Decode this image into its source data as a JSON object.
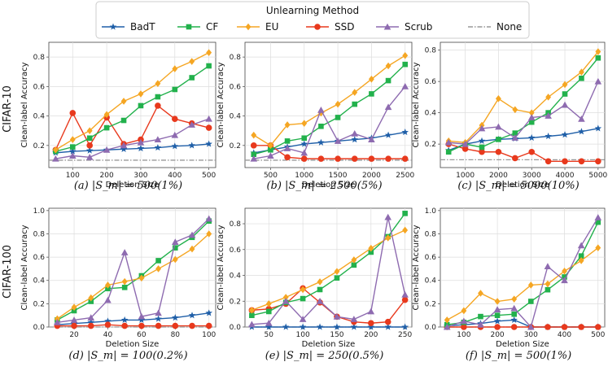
{
  "legend": {
    "title": "Unlearning Method",
    "entries": [
      {
        "name": "BadT",
        "color": "#1f5fa8",
        "marker": "star"
      },
      {
        "name": "CF",
        "color": "#22b14c",
        "marker": "square"
      },
      {
        "name": "EU",
        "color": "#f5a623",
        "marker": "diamond"
      },
      {
        "name": "SSD",
        "color": "#e8391d",
        "marker": "circle"
      },
      {
        "name": "Scrub",
        "color": "#8e6bb0",
        "marker": "triangle"
      },
      {
        "name": "None",
        "color": "#999999",
        "marker": "dashdot"
      }
    ]
  },
  "row_labels": [
    "CIFAR-10",
    "CIFAR-100"
  ],
  "chart_data": [
    {
      "type": "line",
      "caption": "(a) |S_m| = 500(1%)",
      "xlabel": "Deletion Size",
      "ylabel": "Clean-label Accuracy",
      "xlim": [
        30,
        520
      ],
      "ylim": [
        0.05,
        0.9
      ],
      "xticks": [
        100,
        200,
        300,
        400,
        500
      ],
      "yticks": [
        0.2,
        0.4,
        0.6,
        0.8
      ],
      "x": [
        50,
        100,
        150,
        200,
        250,
        300,
        350,
        400,
        450,
        500
      ],
      "none": 0.1,
      "series": [
        {
          "name": "BadT",
          "values": [
            0.15,
            0.16,
            0.165,
            0.17,
            0.175,
            0.18,
            0.185,
            0.195,
            0.2,
            0.21
          ]
        },
        {
          "name": "CF",
          "values": [
            0.16,
            0.19,
            0.25,
            0.32,
            0.37,
            0.47,
            0.53,
            0.58,
            0.66,
            0.74
          ]
        },
        {
          "name": "EU",
          "values": [
            0.17,
            0.24,
            0.3,
            0.41,
            0.5,
            0.55,
            0.62,
            0.72,
            0.77,
            0.83
          ]
        },
        {
          "name": "SSD",
          "values": [
            0.17,
            0.42,
            0.2,
            0.39,
            0.21,
            0.24,
            0.47,
            0.38,
            0.35,
            0.32
          ]
        },
        {
          "name": "Scrub",
          "values": [
            0.11,
            0.13,
            0.12,
            0.17,
            0.2,
            0.22,
            0.24,
            0.27,
            0.34,
            0.38
          ]
        }
      ]
    },
    {
      "type": "line",
      "caption": "(b) |S_m| = 2500(5%)",
      "xlabel": "Deletion Size",
      "ylabel": "Clean-label Accuracy",
      "xlim": [
        120,
        2600
      ],
      "ylim": [
        0.05,
        0.9
      ],
      "xticks": [
        500,
        1000,
        1500,
        2000,
        2500
      ],
      "yticks": [
        0.2,
        0.4,
        0.6,
        0.8
      ],
      "x": [
        250,
        500,
        750,
        1000,
        1250,
        1500,
        1750,
        2000,
        2250,
        2500
      ],
      "none": 0.1,
      "series": [
        {
          "name": "BadT",
          "values": [
            0.15,
            0.17,
            0.19,
            0.21,
            0.22,
            0.23,
            0.24,
            0.25,
            0.27,
            0.29
          ]
        },
        {
          "name": "CF",
          "values": [
            0.14,
            0.17,
            0.23,
            0.25,
            0.33,
            0.39,
            0.48,
            0.55,
            0.64,
            0.75
          ]
        },
        {
          "name": "EU",
          "values": [
            0.27,
            0.2,
            0.34,
            0.35,
            0.42,
            0.48,
            0.56,
            0.65,
            0.74,
            0.81
          ]
        },
        {
          "name": "SSD",
          "values": [
            0.2,
            0.2,
            0.12,
            0.11,
            0.11,
            0.11,
            0.11,
            0.11,
            0.11,
            0.11
          ]
        },
        {
          "name": "Scrub",
          "values": [
            0.11,
            0.13,
            0.18,
            0.15,
            0.44,
            0.23,
            0.28,
            0.24,
            0.46,
            0.6
          ]
        }
      ]
    },
    {
      "type": "line",
      "caption": "(c) |S_m| = 5000(10%)",
      "xlabel": "Deletion Size",
      "ylabel": "Clean-label Accuracy",
      "xlim": [
        250,
        5200
      ],
      "ylim": [
        0.05,
        0.85
      ],
      "xticks": [
        1000,
        2000,
        3000,
        4000,
        5000
      ],
      "yticks": [
        0.2,
        0.4,
        0.6,
        0.8
      ],
      "x": [
        500,
        1000,
        1500,
        2000,
        2500,
        3000,
        3500,
        4000,
        4500,
        5000
      ],
      "none": 0.1,
      "series": [
        {
          "name": "BadT",
          "values": [
            0.16,
            0.2,
            0.22,
            0.23,
            0.235,
            0.24,
            0.25,
            0.26,
            0.28,
            0.3
          ]
        },
        {
          "name": "CF",
          "values": [
            0.15,
            0.2,
            0.18,
            0.23,
            0.27,
            0.34,
            0.4,
            0.52,
            0.62,
            0.75
          ]
        },
        {
          "name": "EU",
          "values": [
            0.22,
            0.21,
            0.32,
            0.49,
            0.42,
            0.4,
            0.5,
            0.58,
            0.66,
            0.79
          ]
        },
        {
          "name": "SSD",
          "values": [
            0.2,
            0.17,
            0.15,
            0.15,
            0.11,
            0.15,
            0.09,
            0.09,
            0.09,
            0.09
          ]
        },
        {
          "name": "Scrub",
          "values": [
            0.21,
            0.2,
            0.3,
            0.31,
            0.24,
            0.37,
            0.38,
            0.45,
            0.36,
            0.6
          ]
        }
      ]
    },
    {
      "type": "line",
      "caption": "(d) |S_m| = 100(0.2%)",
      "xlabel": "Deletion Size",
      "ylabel": "Clean-label Accuracy",
      "xlim": [
        5,
        104
      ],
      "ylim": [
        0.0,
        1.02
      ],
      "xticks": [
        20,
        40,
        60,
        80,
        100
      ],
      "yticks": [
        0.0,
        0.2,
        0.4,
        0.6,
        0.8,
        1.0
      ],
      "x": [
        10,
        20,
        30,
        40,
        50,
        60,
        70,
        80,
        90,
        100
      ],
      "none": 0.0,
      "series": [
        {
          "name": "BadT",
          "values": [
            0.02,
            0.03,
            0.04,
            0.05,
            0.06,
            0.06,
            0.07,
            0.08,
            0.1,
            0.12
          ]
        },
        {
          "name": "CF",
          "values": [
            0.06,
            0.14,
            0.22,
            0.33,
            0.34,
            0.44,
            0.57,
            0.68,
            0.77,
            0.91
          ]
        },
        {
          "name": "EU",
          "values": [
            0.07,
            0.17,
            0.25,
            0.36,
            0.39,
            0.42,
            0.5,
            0.58,
            0.67,
            0.8
          ]
        },
        {
          "name": "SSD",
          "values": [
            0.01,
            0.01,
            0.01,
            0.02,
            0.01,
            0.01,
            0.01,
            0.01,
            0.01,
            0.01
          ]
        },
        {
          "name": "Scrub",
          "values": [
            0.04,
            0.06,
            0.08,
            0.23,
            0.64,
            0.09,
            0.12,
            0.73,
            0.79,
            0.93
          ]
        }
      ]
    },
    {
      "type": "line",
      "caption": "(e) |S_m| = 250(0.5%)",
      "xlabel": "Deletion Size",
      "ylabel": "Clean-label Accuracy",
      "xlim": [
        15,
        260
      ],
      "ylim": [
        0.0,
        0.92
      ],
      "xticks": [
        50,
        100,
        150,
        200,
        250
      ],
      "yticks": [
        0.0,
        0.2,
        0.4,
        0.6,
        0.8
      ],
      "x": [
        25,
        50,
        75,
        100,
        125,
        150,
        175,
        200,
        225,
        250
      ],
      "none": 0.0,
      "series": [
        {
          "name": "BadT",
          "values": [
            0.0,
            0.0,
            0.0,
            0.0,
            0.0,
            0.0,
            0.0,
            0.0,
            0.0,
            0.0
          ]
        },
        {
          "name": "CF",
          "values": [
            0.09,
            0.12,
            0.19,
            0.22,
            0.29,
            0.38,
            0.48,
            0.58,
            0.7,
            0.88
          ]
        },
        {
          "name": "EU",
          "values": [
            0.13,
            0.18,
            0.23,
            0.29,
            0.35,
            0.43,
            0.52,
            0.61,
            0.69,
            0.75
          ]
        },
        {
          "name": "SSD",
          "values": [
            0.13,
            0.14,
            0.18,
            0.3,
            0.19,
            0.08,
            0.04,
            0.03,
            0.04,
            0.21
          ]
        },
        {
          "name": "Scrub",
          "values": [
            0.02,
            0.03,
            0.2,
            0.06,
            0.2,
            0.08,
            0.06,
            0.12,
            0.85,
            0.25
          ]
        }
      ]
    },
    {
      "type": "line",
      "caption": "(f) |S_m| = 500(1%)",
      "xlabel": "Deletion Size",
      "ylabel": "Clean-label Accuracy",
      "xlim": [
        30,
        520
      ],
      "ylim": [
        0.0,
        1.02
      ],
      "xticks": [
        100,
        200,
        300,
        400,
        500
      ],
      "yticks": [
        0.0,
        0.2,
        0.4,
        0.6,
        0.8,
        1.0
      ],
      "x": [
        50,
        100,
        150,
        200,
        250,
        300,
        350,
        400,
        450,
        500
      ],
      "none": 0.0,
      "series": [
        {
          "name": "BadT",
          "values": [
            0.01,
            0.02,
            0.03,
            0.05,
            0.06,
            0.0,
            0.0,
            0.0,
            0.0,
            0.0
          ]
        },
        {
          "name": "CF",
          "values": [
            0.02,
            0.04,
            0.09,
            0.1,
            0.11,
            0.22,
            0.32,
            0.43,
            0.61,
            0.9
          ]
        },
        {
          "name": "EU",
          "values": [
            0.06,
            0.14,
            0.29,
            0.22,
            0.24,
            0.36,
            0.37,
            0.48,
            0.57,
            0.68
          ]
        },
        {
          "name": "SSD",
          "values": [
            0.0,
            0.0,
            0.0,
            0.0,
            0.0,
            0.0,
            0.0,
            0.0,
            0.0,
            0.0
          ]
        },
        {
          "name": "Scrub",
          "values": [
            0.0,
            0.05,
            0.02,
            0.15,
            0.16,
            0.0,
            0.52,
            0.4,
            0.7,
            0.94
          ]
        }
      ]
    }
  ]
}
